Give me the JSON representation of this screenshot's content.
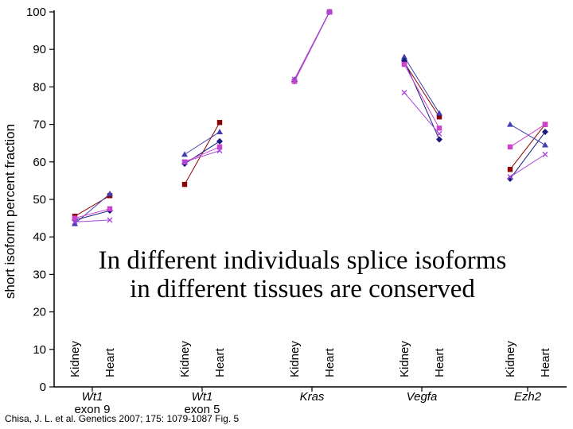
{
  "chart_data": {
    "type": "line",
    "ylabel": "short isoform percent fraction",
    "ylim": [
      0,
      100
    ],
    "yticks": [
      0,
      10,
      20,
      30,
      40,
      50,
      60,
      70,
      80,
      90,
      100
    ],
    "tissues": [
      "Kidney",
      "Heart"
    ],
    "genes": [
      {
        "name": "Wt1",
        "sub": "exon 9"
      },
      {
        "name": "Wt1",
        "sub": "exon 5"
      },
      {
        "name": "Kras",
        "sub": ""
      },
      {
        "name": "Vegfa",
        "sub": ""
      },
      {
        "name": "Ezh2",
        "sub": ""
      }
    ],
    "series": [
      {
        "color": "#8b0000",
        "marker": "square",
        "values": [
          [
            45.5,
            51.0
          ],
          [
            54.0,
            70.5
          ],
          [
            81.5,
            100.0
          ],
          [
            86.5,
            72.0
          ],
          [
            58.0,
            70.0
          ]
        ]
      },
      {
        "color": "#4040b0",
        "marker": "triangle",
        "values": [
          [
            43.5,
            51.5
          ],
          [
            62.0,
            68.0
          ],
          [
            82.0,
            100.0
          ],
          [
            88.0,
            73.0
          ],
          [
            70.0,
            64.5
          ]
        ]
      },
      {
        "color": "#1a1a80",
        "marker": "diamond",
        "values": [
          [
            44.5,
            47.0
          ],
          [
            59.5,
            65.5
          ],
          [
            81.5,
            100.0
          ],
          [
            87.0,
            66.0
          ],
          [
            55.5,
            68.0
          ]
        ]
      },
      {
        "color": "#cc44cc",
        "marker": "square",
        "values": [
          [
            45.0,
            47.5
          ],
          [
            60.0,
            64.0
          ],
          [
            81.5,
            100.0
          ],
          [
            86.0,
            69.0
          ],
          [
            64.0,
            70.0
          ]
        ]
      },
      {
        "color": "#aa44dd",
        "marker": "x",
        "values": [
          [
            44.0,
            44.5
          ],
          [
            60.0,
            63.0
          ],
          [
            82.0,
            100.0
          ],
          [
            78.5,
            67.5
          ],
          [
            56.0,
            62.0
          ]
        ]
      }
    ]
  },
  "overlay": {
    "line1": "In different individuals splice isoforms",
    "line2": "in different tissues are conserved"
  },
  "citation": "Chisa, J. L. et al. Genetics 2007; 175: 1079-1087 Fig. 5"
}
